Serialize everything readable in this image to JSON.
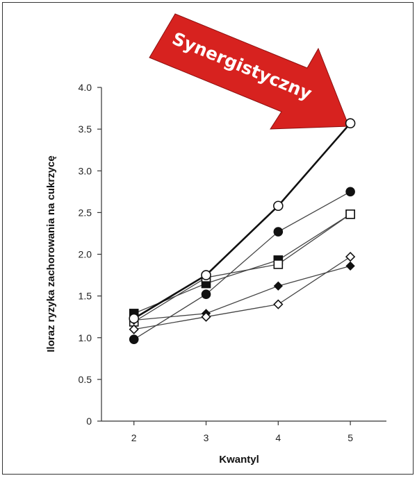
{
  "chart_data": {
    "type": "line",
    "title": "",
    "xlabel": "Kwantyl",
    "ylabel": "Iloraz ryzyka zachorowania na cukrzycę",
    "x": [
      2,
      3,
      4,
      5
    ],
    "xlim": [
      1.55,
      5.5
    ],
    "ylim": [
      0,
      4.0
    ],
    "yticks": [
      "0",
      "0.5",
      "1.0",
      "1.5",
      "2.0",
      "2.5",
      "3.0",
      "3.5",
      "4.0"
    ],
    "xticks": [
      "2",
      "3",
      "4",
      "5"
    ],
    "grid": false,
    "legend": "none",
    "annotation": "Synergistyczny",
    "colors": {
      "arrow": "#d7221f",
      "line": "#444444",
      "line_bold": "#111111"
    },
    "series": [
      {
        "marker": "open-circle",
        "values": [
          1.23,
          1.75,
          2.58,
          3.57
        ],
        "bold": true
      },
      {
        "marker": "filled-circle",
        "values": [
          0.98,
          1.52,
          2.27,
          2.75
        ],
        "bold": false
      },
      {
        "marker": "filled-square",
        "values": [
          1.29,
          1.65,
          1.93,
          2.48
        ],
        "bold": false
      },
      {
        "marker": "open-square",
        "values": [
          1.19,
          1.72,
          1.88,
          2.48
        ],
        "bold": false
      },
      {
        "marker": "filled-diamond",
        "values": [
          1.21,
          1.29,
          1.62,
          1.86
        ],
        "bold": false
      },
      {
        "marker": "open-diamond",
        "values": [
          1.1,
          1.25,
          1.4,
          1.97
        ],
        "bold": false
      }
    ]
  }
}
